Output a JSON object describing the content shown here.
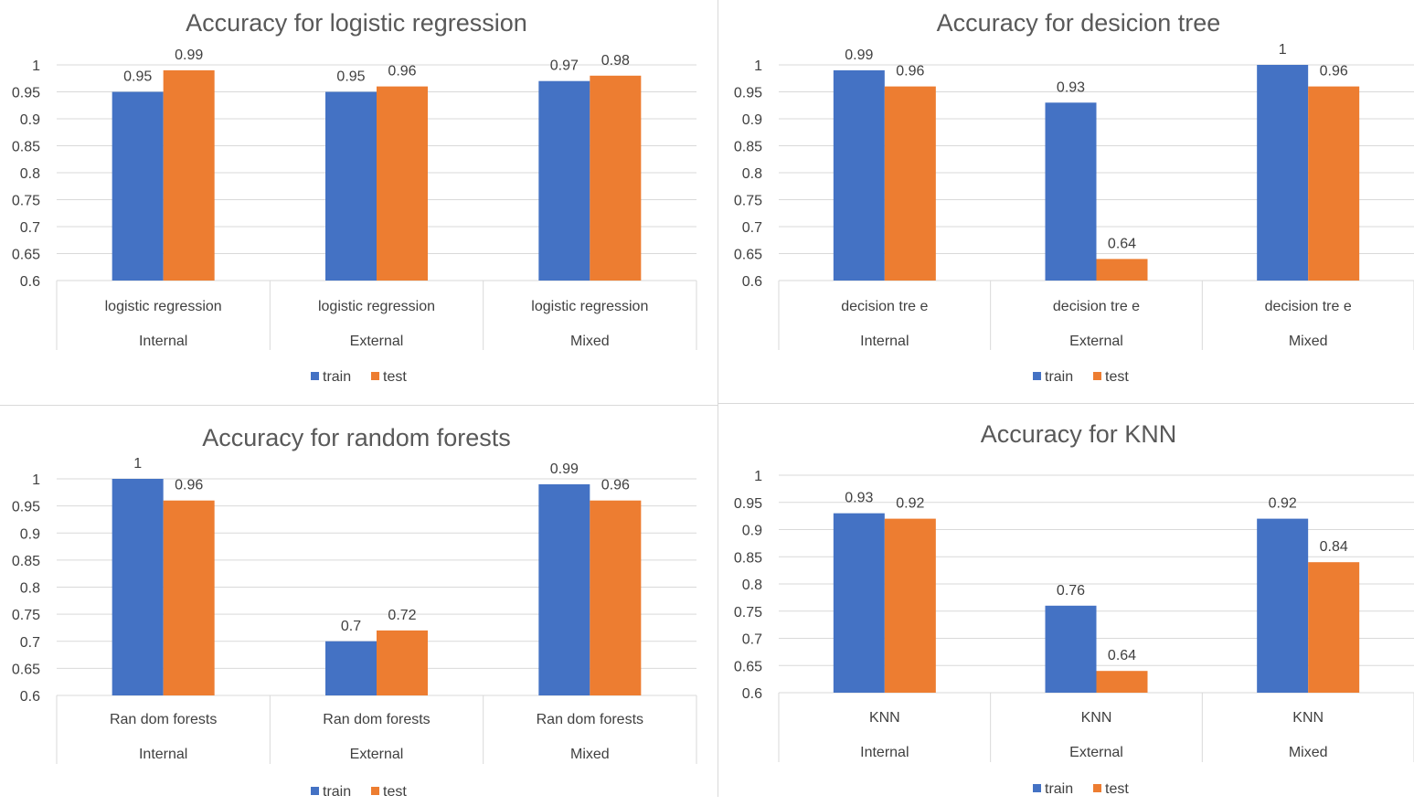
{
  "chart_data": [
    {
      "type": "bar",
      "title": "Accuracy for logistic regression",
      "ylim": [
        0.6,
        1
      ],
      "yticks": [
        "1",
        "0.95",
        "0.9",
        "0.85",
        "0.8",
        "0.75",
        "0.7",
        "0.65",
        "0.6"
      ],
      "categories": [
        {
          "name": "logistic regression",
          "group": "Internal"
        },
        {
          "name": "logistic regression",
          "group": "External"
        },
        {
          "name": "logistic regression",
          "group": "Mixed"
        }
      ],
      "series": [
        {
          "name": "train",
          "color": "#4472c4",
          "values": [
            0.95,
            0.95,
            0.97
          ],
          "labels": [
            "0.95",
            "0.95",
            "0.97"
          ]
        },
        {
          "name": "test",
          "color": "#ed7d31",
          "values": [
            0.99,
            0.96,
            0.98
          ],
          "labels": [
            "0.99",
            "0.96",
            "0.98"
          ]
        }
      ],
      "grid": true,
      "legend": "bottom"
    },
    {
      "type": "bar",
      "title": "Accuracy for desicion  tree",
      "ylim": [
        0.6,
        1
      ],
      "yticks": [
        "1",
        "0.95",
        "0.9",
        "0.85",
        "0.8",
        "0.75",
        "0.7",
        "0.65",
        "0.6"
      ],
      "categories": [
        {
          "name": "decision tre e",
          "group": "Internal"
        },
        {
          "name": "decision tre e",
          "group": "External"
        },
        {
          "name": "decision tre e",
          "group": "Mixed"
        }
      ],
      "series": [
        {
          "name": "train",
          "color": "#4472c4",
          "values": [
            0.99,
            0.93,
            1.0
          ],
          "labels": [
            "0.99",
            "0.93",
            "1"
          ]
        },
        {
          "name": "test",
          "color": "#ed7d31",
          "values": [
            0.96,
            0.64,
            0.96
          ],
          "labels": [
            "0.96",
            "0.64",
            "0.96"
          ]
        }
      ],
      "grid": true,
      "legend": "bottom"
    },
    {
      "type": "bar",
      "title": "Accuracy for random forests",
      "ylim": [
        0.6,
        1
      ],
      "yticks": [
        "1",
        "0.95",
        "0.9",
        "0.85",
        "0.8",
        "0.75",
        "0.7",
        "0.65",
        "0.6"
      ],
      "categories": [
        {
          "name": "Ran dom forests",
          "group": "Internal"
        },
        {
          "name": "Ran dom forests",
          "group": "External"
        },
        {
          "name": "Ran dom forests",
          "group": "Mixed"
        }
      ],
      "series": [
        {
          "name": "train",
          "color": "#4472c4",
          "values": [
            1.0,
            0.7,
            0.99
          ],
          "labels": [
            "1",
            "0.7",
            "0.99"
          ]
        },
        {
          "name": "test",
          "color": "#ed7d31",
          "values": [
            0.96,
            0.72,
            0.96
          ],
          "labels": [
            "0.96",
            "0.72",
            "0.96"
          ]
        }
      ],
      "grid": true,
      "legend": "bottom"
    },
    {
      "type": "bar",
      "title": "Accuracy for  KNN",
      "ylim": [
        0.6,
        1
      ],
      "yticks": [
        "1",
        "0.95",
        "0.9",
        "0.85",
        "0.8",
        "0.75",
        "0.7",
        "0.65",
        "0.6"
      ],
      "categories": [
        {
          "name": "KNN",
          "group": "Internal"
        },
        {
          "name": "KNN",
          "group": "External"
        },
        {
          "name": "KNN",
          "group": "Mixed"
        }
      ],
      "series": [
        {
          "name": "train",
          "color": "#4472c4",
          "values": [
            0.93,
            0.76,
            0.92
          ],
          "labels": [
            "0.93",
            "0.76",
            "0.92"
          ]
        },
        {
          "name": "test",
          "color": "#ed7d31",
          "values": [
            0.92,
            0.64,
            0.84
          ],
          "labels": [
            "0.92",
            "0.64",
            "0.84"
          ]
        }
      ],
      "grid": true,
      "legend": "bottom"
    }
  ]
}
